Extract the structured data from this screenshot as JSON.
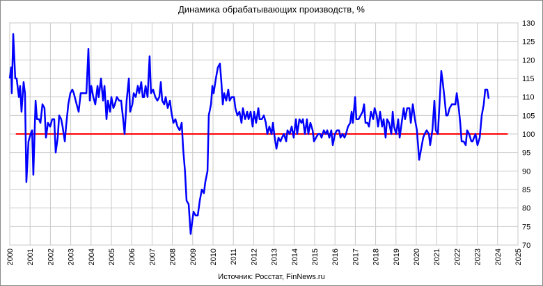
{
  "chart_data": {
    "type": "line",
    "title": "Динамика обрабатывающих производств, %",
    "source": "Источник: Росстат, FinNews.ru",
    "x": [
      2000.0,
      2000.07,
      2000.1,
      2000.17,
      2000.27,
      2000.34,
      2000.45,
      2000.51,
      2000.58,
      2000.68,
      2000.75,
      2000.82,
      2000.92,
      2001.03,
      2001.1,
      2001.16,
      2001.27,
      2001.34,
      2001.44,
      2001.51,
      2001.61,
      2001.71,
      2001.78,
      2001.88,
      2001.99,
      2002.09,
      2002.19,
      2002.26,
      2002.36,
      2002.43,
      2002.53,
      2002.6,
      2002.71,
      2002.77,
      2002.88,
      2002.98,
      2003.08,
      2003.15,
      2003.29,
      2003.39,
      2003.49,
      2003.6,
      2003.66,
      2003.77,
      2003.87,
      2003.94,
      2004.01,
      2004.11,
      2004.21,
      2004.32,
      2004.38,
      2004.49,
      2004.59,
      2004.66,
      2004.76,
      2004.83,
      2004.93,
      2005.0,
      2005.1,
      2005.17,
      2005.27,
      2005.38,
      2005.48,
      2005.58,
      2005.65,
      2005.75,
      2005.86,
      2005.92,
      2006.03,
      2006.1,
      2006.2,
      2006.3,
      2006.37,
      2006.47,
      2006.54,
      2006.61,
      2006.68,
      2006.78,
      2006.88,
      2006.95,
      2007.05,
      2007.16,
      2007.26,
      2007.36,
      2007.43,
      2007.5,
      2007.6,
      2007.67,
      2007.77,
      2007.88,
      2007.95,
      2008.05,
      2008.15,
      2008.25,
      2008.36,
      2008.46,
      2008.53,
      2008.62,
      2008.7,
      2008.8,
      2008.9,
      2008.97,
      2009.04,
      2009.14,
      2009.25,
      2009.35,
      2009.45,
      2009.55,
      2009.62,
      2009.73,
      2009.79,
      2009.9,
      2009.97,
      2010.03,
      2010.14,
      2010.24,
      2010.34,
      2010.41,
      2010.48,
      2010.55,
      2010.65,
      2010.75,
      2010.82,
      2010.92,
      2011.03,
      2011.1,
      2011.2,
      2011.3,
      2011.4,
      2011.47,
      2011.58,
      2011.68,
      2011.75,
      2011.85,
      2011.95,
      2012.02,
      2012.12,
      2012.23,
      2012.29,
      2012.4,
      2012.5,
      2012.6,
      2012.67,
      2012.77,
      2012.88,
      2012.95,
      2013.01,
      2013.12,
      2013.22,
      2013.32,
      2013.39,
      2013.49,
      2013.6,
      2013.66,
      2013.77,
      2013.87,
      2013.97,
      2014.08,
      2014.14,
      2014.25,
      2014.35,
      2014.42,
      2014.52,
      2014.62,
      2014.69,
      2014.79,
      2014.9,
      2014.97,
      2015.07,
      2015.17,
      2015.27,
      2015.34,
      2015.45,
      2015.55,
      2015.62,
      2015.72,
      2015.82,
      2015.89,
      2016.0,
      2016.1,
      2016.2,
      2016.27,
      2016.37,
      2016.47,
      2016.54,
      2016.64,
      2016.75,
      2016.82,
      2016.88,
      2016.99,
      2017.05,
      2017.16,
      2017.26,
      2017.36,
      2017.43,
      2017.5,
      2017.6,
      2017.67,
      2017.77,
      2017.88,
      2017.95,
      2018.05,
      2018.12,
      2018.22,
      2018.32,
      2018.39,
      2018.49,
      2018.56,
      2018.66,
      2018.77,
      2018.84,
      2018.9,
      2019.01,
      2019.11,
      2019.18,
      2019.28,
      2019.38,
      2019.45,
      2019.55,
      2019.66,
      2019.73,
      2019.83,
      2019.93,
      2020.03,
      2020.14,
      2020.24,
      2020.34,
      2020.41,
      2020.51,
      2020.62,
      2020.68,
      2020.79,
      2020.89,
      2020.96,
      2021.06,
      2021.13,
      2021.23,
      2021.3,
      2021.4,
      2021.47,
      2021.54,
      2021.64,
      2021.75,
      2021.85,
      2021.92,
      2021.99,
      2022.09,
      2022.16,
      2022.23,
      2022.33,
      2022.43,
      2022.5,
      2022.6,
      2022.71,
      2022.77,
      2022.84,
      2022.91,
      2023.01,
      2023.12,
      2023.22,
      2023.32,
      2023.39,
      2023.49,
      2023.56
    ],
    "series": [
      {
        "color": "#0000ff",
        "values": [
          115,
          118,
          111,
          127,
          115,
          115,
          110,
          113,
          106,
          114,
          111,
          87,
          98,
          100,
          101,
          89,
          109,
          104,
          104,
          103,
          108,
          107,
          99,
          103,
          102,
          104,
          104,
          95,
          99,
          105,
          104,
          102,
          98,
          102,
          108,
          111,
          112,
          111,
          108,
          106,
          111,
          111,
          111,
          111,
          123,
          109,
          113,
          110,
          108,
          113,
          110,
          115,
          109,
          113,
          104,
          109,
          106,
          110,
          107,
          108,
          110,
          109,
          109,
          104,
          100,
          109,
          115,
          106,
          108,
          111,
          110,
          113,
          111,
          114,
          110,
          110,
          113,
          110,
          121,
          111,
          112,
          110,
          109,
          110,
          114,
          109,
          108,
          110,
          107,
          109,
          106,
          103,
          104,
          102,
          101,
          103,
          96,
          90,
          82,
          81,
          73,
          76,
          79,
          78,
          78,
          82,
          85,
          84,
          87,
          90,
          105,
          108,
          113,
          111,
          115,
          118,
          119,
          114,
          108,
          111,
          109,
          112,
          109,
          110,
          110,
          107,
          105,
          106,
          103,
          107,
          104,
          106,
          104,
          106,
          102,
          106,
          103,
          107,
          104,
          104,
          105,
          103,
          100,
          102,
          100,
          103,
          100,
          96,
          99,
          98,
          99,
          100,
          98,
          101,
          100,
          102,
          99,
          104,
          100,
          104,
          103,
          104,
          100,
          104,
          100,
          103,
          101,
          98,
          99,
          100,
          100,
          99,
          101,
          100,
          101,
          99,
          101,
          97,
          100,
          101,
          101,
          99,
          100,
          99,
          100,
          102,
          103,
          106,
          103,
          110,
          104,
          104,
          105,
          106,
          108,
          103,
          103,
          102,
          106,
          104,
          107,
          105,
          102,
          106,
          102,
          104,
          99,
          104,
          103,
          100,
          106,
          102,
          100,
          104,
          99,
          103,
          107,
          104,
          107,
          107,
          103,
          108,
          104,
          101,
          93,
          96,
          99,
          100,
          101,
          100,
          97,
          101,
          109,
          101,
          100,
          107,
          117,
          114,
          109,
          105,
          105,
          107,
          108,
          108,
          108,
          111,
          107,
          103,
          98,
          98,
          97,
          101,
          100,
          98,
          98,
          99,
          100,
          97,
          99,
          105,
          108,
          112,
          112,
          109.5
        ]
      }
    ],
    "reference_line": {
      "y": 100,
      "x": [
        2000.3,
        2024.5
      ],
      "color": "#ff0000"
    },
    "xlim": [
      2000,
      2025
    ],
    "xticks": [
      2000,
      2001,
      2002,
      2003,
      2004,
      2005,
      2006,
      2007,
      2008,
      2009,
      2010,
      2011,
      2012,
      2013,
      2014,
      2015,
      2016,
      2017,
      2018,
      2019,
      2020,
      2021,
      2022,
      2023,
      2024,
      2025
    ],
    "ylim": [
      70,
      130
    ],
    "yticks": [
      70,
      75,
      80,
      85,
      90,
      95,
      100,
      105,
      110,
      115,
      120,
      125,
      130
    ],
    "y_axis_side": "right",
    "grid": true
  }
}
